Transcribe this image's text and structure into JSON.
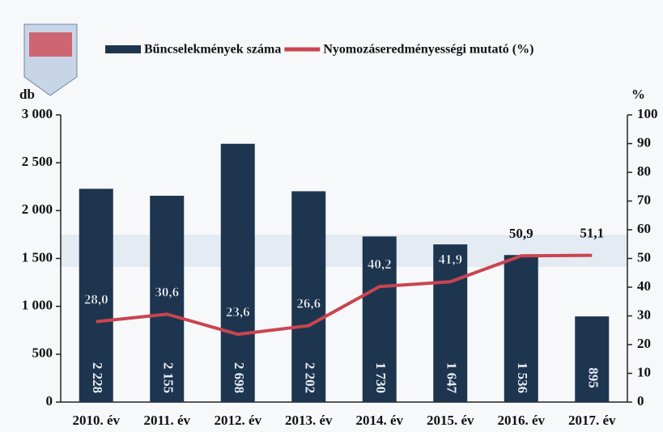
{
  "chart_data": {
    "type": "combo",
    "categories": [
      "2010. év",
      "2011. év",
      "2012. év",
      "2013. év",
      "2014. év",
      "2015. év",
      "2016. év",
      "2017. év"
    ],
    "series": [
      {
        "name": "Bűncselekmények száma",
        "type": "bar",
        "color": "#1e3550",
        "values": [
          2228,
          2155,
          2698,
          2202,
          1730,
          1647,
          1536,
          895
        ],
        "value_labels": [
          "2 228",
          "2 155",
          "2 698",
          "2 202",
          "1 730",
          "1 647",
          "1 536",
          "895"
        ]
      },
      {
        "name": "Nyomozáseredményességi mutató (%)",
        "type": "line",
        "color": "#c9454f",
        "axis": "y2",
        "values": [
          28.0,
          30.6,
          23.6,
          26.6,
          40.2,
          41.9,
          50.9,
          51.1
        ],
        "value_labels": [
          "28,0",
          "30,6",
          "23,6",
          "26,6",
          "40,2",
          "41,9",
          "50,9",
          "51,1"
        ]
      }
    ],
    "ylabel": "db",
    "y2label": "%",
    "ylim": [
      0,
      3000
    ],
    "yticks": [
      0,
      500,
      {
        "value": 1000,
        "label": "1 000"
      },
      {
        "value": 1500,
        "label": "1 500"
      },
      {
        "value": 2000,
        "label": "2 000"
      },
      {
        "value": 2500,
        "label": "2 500"
      },
      {
        "value": 3000,
        "label": "3 000"
      }
    ],
    "y2lim": [
      0,
      100
    ],
    "y2ticks": [
      0,
      10,
      20,
      30,
      40,
      50,
      60,
      70,
      80,
      90,
      100
    ]
  }
}
